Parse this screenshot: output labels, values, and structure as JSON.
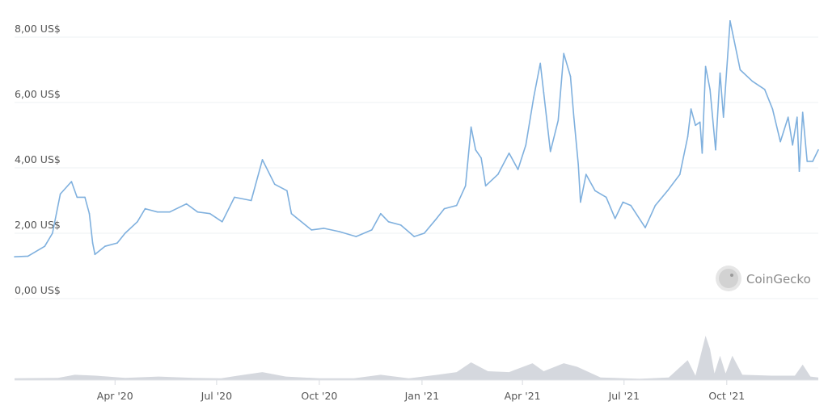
{
  "chart_data": {
    "type": "line",
    "title": "",
    "xlabel": "",
    "ylabel": "",
    "ylim": [
      0,
      8
    ],
    "y_ticks": [
      "0,00 US$",
      "2,00 US$",
      "4,00 US$",
      "6,00 US$",
      "8,00 US$"
    ],
    "y_tick_values": [
      0,
      2,
      4,
      6,
      8
    ],
    "x_range": [
      "2020-01-02",
      "2021-12-22"
    ],
    "x_ticks": [
      {
        "label": "Apr '20",
        "date": "2020-04-01"
      },
      {
        "label": "Jul '20",
        "date": "2020-07-01"
      },
      {
        "label": "Oct '20",
        "date": "2020-10-01"
      },
      {
        "label": "Jan '21",
        "date": "2021-01-01"
      },
      {
        "label": "Apr '21",
        "date": "2021-04-01"
      },
      {
        "label": "Jul '21",
        "date": "2021-07-01"
      },
      {
        "label": "Oct '21",
        "date": "2021-10-01"
      }
    ],
    "grid": true,
    "legend": "none",
    "line_color": "#7fb0de",
    "volume_color": "#d5d8de",
    "price": [
      [
        "2020-01-02",
        1.28
      ],
      [
        "2020-01-14",
        1.3
      ],
      [
        "2020-01-29",
        1.6
      ],
      [
        "2020-02-05",
        2.0
      ],
      [
        "2020-02-12",
        3.2
      ],
      [
        "2020-02-22",
        3.58
      ],
      [
        "2020-02-27",
        3.1
      ],
      [
        "2020-03-05",
        3.1
      ],
      [
        "2020-03-09",
        2.6
      ],
      [
        "2020-03-12",
        1.7
      ],
      [
        "2020-03-14",
        1.35
      ],
      [
        "2020-03-23",
        1.6
      ],
      [
        "2020-04-03",
        1.7
      ],
      [
        "2020-04-10",
        2.0
      ],
      [
        "2020-04-21",
        2.35
      ],
      [
        "2020-04-28",
        2.75
      ],
      [
        "2020-05-09",
        2.65
      ],
      [
        "2020-05-20",
        2.65
      ],
      [
        "2020-06-04",
        2.9
      ],
      [
        "2020-06-14",
        2.65
      ],
      [
        "2020-06-25",
        2.6
      ],
      [
        "2020-07-06",
        2.35
      ],
      [
        "2020-07-17",
        3.1
      ],
      [
        "2020-08-01",
        3.0
      ],
      [
        "2020-08-11",
        4.25
      ],
      [
        "2020-08-22",
        3.5
      ],
      [
        "2020-09-02",
        3.3
      ],
      [
        "2020-09-06",
        2.6
      ],
      [
        "2020-09-24",
        2.1
      ],
      [
        "2020-10-05",
        2.15
      ],
      [
        "2020-10-19",
        2.05
      ],
      [
        "2020-11-03",
        1.9
      ],
      [
        "2020-11-17",
        2.1
      ],
      [
        "2020-11-25",
        2.6
      ],
      [
        "2020-12-02",
        2.35
      ],
      [
        "2020-12-13",
        2.25
      ],
      [
        "2020-12-25",
        1.9
      ],
      [
        "2021-01-03",
        2.0
      ],
      [
        "2021-01-14",
        2.45
      ],
      [
        "2021-01-21",
        2.75
      ],
      [
        "2021-02-01",
        2.85
      ],
      [
        "2021-02-09",
        3.45
      ],
      [
        "2021-02-14",
        5.25
      ],
      [
        "2021-02-18",
        4.55
      ],
      [
        "2021-02-23",
        4.3
      ],
      [
        "2021-02-27",
        3.45
      ],
      [
        "2021-03-10",
        3.8
      ],
      [
        "2021-03-20",
        4.45
      ],
      [
        "2021-03-28",
        3.95
      ],
      [
        "2021-04-04",
        4.7
      ],
      [
        "2021-04-11",
        6.15
      ],
      [
        "2021-04-17",
        7.2
      ],
      [
        "2021-04-20",
        6.3
      ],
      [
        "2021-04-26",
        4.5
      ],
      [
        "2021-05-03",
        5.45
      ],
      [
        "2021-05-08",
        7.5
      ],
      [
        "2021-05-14",
        6.8
      ],
      [
        "2021-05-17",
        5.55
      ],
      [
        "2021-05-21",
        4.1
      ],
      [
        "2021-05-23",
        2.95
      ],
      [
        "2021-05-28",
        3.8
      ],
      [
        "2021-06-05",
        3.3
      ],
      [
        "2021-06-15",
        3.1
      ],
      [
        "2021-06-23",
        2.45
      ],
      [
        "2021-06-30",
        2.95
      ],
      [
        "2021-07-07",
        2.85
      ],
      [
        "2021-07-20",
        2.17
      ],
      [
        "2021-07-29",
        2.85
      ],
      [
        "2021-08-09",
        3.3
      ],
      [
        "2021-08-20",
        3.8
      ],
      [
        "2021-08-27",
        4.95
      ],
      [
        "2021-08-30",
        5.8
      ],
      [
        "2021-09-03",
        5.3
      ],
      [
        "2021-09-07",
        5.4
      ],
      [
        "2021-09-09",
        4.45
      ],
      [
        "2021-09-12",
        7.1
      ],
      [
        "2021-09-16",
        6.4
      ],
      [
        "2021-09-21",
        4.55
      ],
      [
        "2021-09-25",
        6.9
      ],
      [
        "2021-09-28",
        5.55
      ],
      [
        "2021-10-04",
        8.5
      ],
      [
        "2021-10-13",
        7.0
      ],
      [
        "2021-10-24",
        6.65
      ],
      [
        "2021-11-04",
        6.4
      ],
      [
        "2021-11-11",
        5.8
      ],
      [
        "2021-11-18",
        4.8
      ],
      [
        "2021-11-25",
        5.55
      ],
      [
        "2021-11-29",
        4.7
      ],
      [
        "2021-12-03",
        5.55
      ],
      [
        "2021-12-05",
        3.9
      ],
      [
        "2021-12-08",
        5.7
      ],
      [
        "2021-12-12",
        4.2
      ],
      [
        "2021-12-17",
        4.2
      ],
      [
        "2021-12-22",
        4.55
      ]
    ],
    "volume_relative": [
      [
        "2020-01-02",
        0.04
      ],
      [
        "2020-02-10",
        0.05
      ],
      [
        "2020-02-25",
        0.12
      ],
      [
        "2020-03-15",
        0.1
      ],
      [
        "2020-04-10",
        0.05
      ],
      [
        "2020-05-10",
        0.08
      ],
      [
        "2020-06-10",
        0.05
      ],
      [
        "2020-07-05",
        0.04
      ],
      [
        "2020-07-20",
        0.1
      ],
      [
        "2020-08-11",
        0.18
      ],
      [
        "2020-09-01",
        0.08
      ],
      [
        "2020-10-01",
        0.04
      ],
      [
        "2020-11-01",
        0.04
      ],
      [
        "2020-11-25",
        0.12
      ],
      [
        "2020-12-20",
        0.04
      ],
      [
        "2021-01-15",
        0.12
      ],
      [
        "2021-02-01",
        0.18
      ],
      [
        "2021-02-14",
        0.4
      ],
      [
        "2021-03-01",
        0.2
      ],
      [
        "2021-03-20",
        0.18
      ],
      [
        "2021-04-10",
        0.38
      ],
      [
        "2021-04-20",
        0.2
      ],
      [
        "2021-05-08",
        0.38
      ],
      [
        "2021-05-20",
        0.3
      ],
      [
        "2021-06-10",
        0.06
      ],
      [
        "2021-07-15",
        0.03
      ],
      [
        "2021-08-10",
        0.06
      ],
      [
        "2021-08-27",
        0.45
      ],
      [
        "2021-09-03",
        0.1
      ],
      [
        "2021-09-12",
        1.0
      ],
      [
        "2021-09-16",
        0.7
      ],
      [
        "2021-09-20",
        0.15
      ],
      [
        "2021-09-25",
        0.55
      ],
      [
        "2021-09-30",
        0.15
      ],
      [
        "2021-10-06",
        0.55
      ],
      [
        "2021-10-15",
        0.12
      ],
      [
        "2021-11-10",
        0.1
      ],
      [
        "2021-12-01",
        0.1
      ],
      [
        "2021-12-08",
        0.35
      ],
      [
        "2021-12-15",
        0.08
      ],
      [
        "2021-12-22",
        0.06
      ]
    ]
  },
  "watermark": {
    "text": "CoinGecko",
    "icon": "gecko-logo-icon"
  }
}
